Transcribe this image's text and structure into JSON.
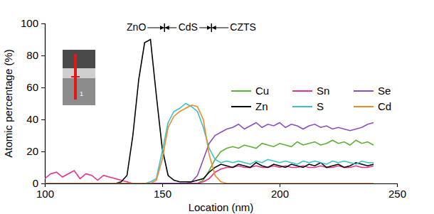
{
  "chart_data": {
    "type": "line",
    "x_label": "Location (nm)",
    "y_label": "Atomic percentage (%)",
    "xlim": [
      100,
      250
    ],
    "ylim": [
      0,
      100
    ],
    "xticks": [
      100,
      150,
      200,
      250
    ],
    "yticks": [
      0,
      20,
      40,
      60,
      80,
      100
    ],
    "grid": false,
    "legend": "right",
    "inset_label": "1",
    "regions": [
      {
        "label": "ZnO",
        "end": 151
      },
      {
        "label": "CdS",
        "start": 151,
        "end": 171
      },
      {
        "label": "CZTS",
        "start": 171
      }
    ],
    "x": [
      100,
      102.5,
      105,
      107.5,
      110,
      112.5,
      115,
      117.5,
      120,
      122.5,
      125,
      127.5,
      130,
      132.5,
      135,
      137.5,
      140,
      142.5,
      145,
      147.5,
      150,
      152.5,
      155,
      157.5,
      160,
      162.5,
      165,
      167.5,
      170,
      172.5,
      175,
      177.5,
      180,
      182.5,
      185,
      187.5,
      190,
      192.5,
      195,
      197.5,
      200,
      202.5,
      205,
      207.5,
      210,
      212.5,
      215,
      217.5,
      220,
      222.5,
      225,
      227.5,
      230,
      232.5,
      235,
      237.5,
      240
    ],
    "series": [
      {
        "name": "Cu",
        "color": "#5bb031",
        "values": [
          0,
          0,
          0,
          0,
          0,
          0,
          0,
          0,
          0,
          0,
          0,
          0,
          0,
          0,
          0,
          0,
          0,
          0,
          0,
          0,
          0,
          0,
          0,
          0,
          0,
          0,
          0,
          2,
          8,
          15,
          20,
          22,
          23,
          22,
          24,
          23,
          22,
          25,
          24,
          23,
          25,
          24,
          23,
          26,
          24,
          25,
          26,
          24,
          25,
          27,
          25,
          26,
          24,
          27,
          25,
          26,
          24
        ]
      },
      {
        "name": "Sn",
        "color": "#e2338c",
        "values": [
          3,
          6,
          7,
          4,
          6,
          8,
          3,
          6,
          5,
          2,
          5,
          4,
          3,
          2,
          1,
          0,
          0,
          0,
          0,
          0,
          0,
          0,
          0,
          0,
          0,
          0,
          0,
          1,
          3,
          7,
          9,
          10,
          10,
          11,
          10,
          10,
          11,
          10,
          10,
          11,
          10,
          11,
          10,
          10,
          11,
          10,
          10,
          11,
          10,
          10,
          11,
          10,
          10,
          11,
          10,
          10,
          11
        ]
      },
      {
        "name": "Se",
        "color": "#8a4fbf",
        "values": [
          0,
          0,
          0,
          0,
          0,
          0,
          0,
          0,
          0,
          0,
          0,
          0,
          0,
          0,
          0,
          0,
          0,
          0,
          0,
          0,
          0,
          0,
          0,
          0,
          0,
          1,
          5,
          15,
          25,
          30,
          32,
          34,
          35,
          37,
          34,
          36,
          38,
          35,
          37,
          36,
          38,
          35,
          37,
          36,
          34,
          36,
          37,
          35,
          36,
          34,
          35,
          34,
          33,
          34,
          35,
          37,
          38
        ]
      },
      {
        "name": "Zn",
        "color": "#000000",
        "values": [
          0,
          0,
          0,
          0,
          0,
          0,
          0,
          0,
          0,
          0,
          0,
          0,
          0,
          1,
          5,
          30,
          65,
          88,
          90,
          55,
          22,
          5,
          2,
          1,
          1,
          1,
          2,
          3,
          7,
          10,
          12,
          11,
          10,
          12,
          11,
          10,
          13,
          11,
          10,
          12,
          11,
          10,
          12,
          11,
          10,
          12,
          11,
          13,
          10,
          11,
          12,
          10,
          11,
          13,
          12,
          11,
          12
        ]
      },
      {
        "name": "S",
        "color": "#36c2cc",
        "values": [
          0,
          0,
          0,
          0,
          0,
          0,
          0,
          0,
          0,
          0,
          0,
          0,
          0,
          0,
          0,
          0,
          0,
          0,
          1,
          3,
          20,
          38,
          45,
          47,
          50,
          48,
          45,
          35,
          22,
          15,
          13,
          14,
          13,
          14,
          13,
          12,
          14,
          13,
          15,
          14,
          13,
          14,
          13,
          12,
          14,
          13,
          14,
          13,
          12,
          14,
          13,
          14,
          13,
          12,
          14,
          13,
          13
        ]
      },
      {
        "name": "Cd",
        "color": "#f08a22",
        "values": [
          0,
          0,
          0,
          0,
          0,
          0,
          0,
          0,
          0,
          0,
          0,
          0,
          0,
          0,
          0,
          0,
          0,
          0,
          0,
          2,
          15,
          35,
          42,
          45,
          47,
          49,
          48,
          40,
          18,
          5,
          1,
          0,
          0,
          0,
          0,
          0,
          0,
          0,
          0,
          0,
          0,
          0,
          0,
          0,
          0,
          0,
          0,
          0,
          0,
          0,
          0,
          0,
          0,
          0,
          0,
          0,
          0
        ]
      }
    ]
  }
}
